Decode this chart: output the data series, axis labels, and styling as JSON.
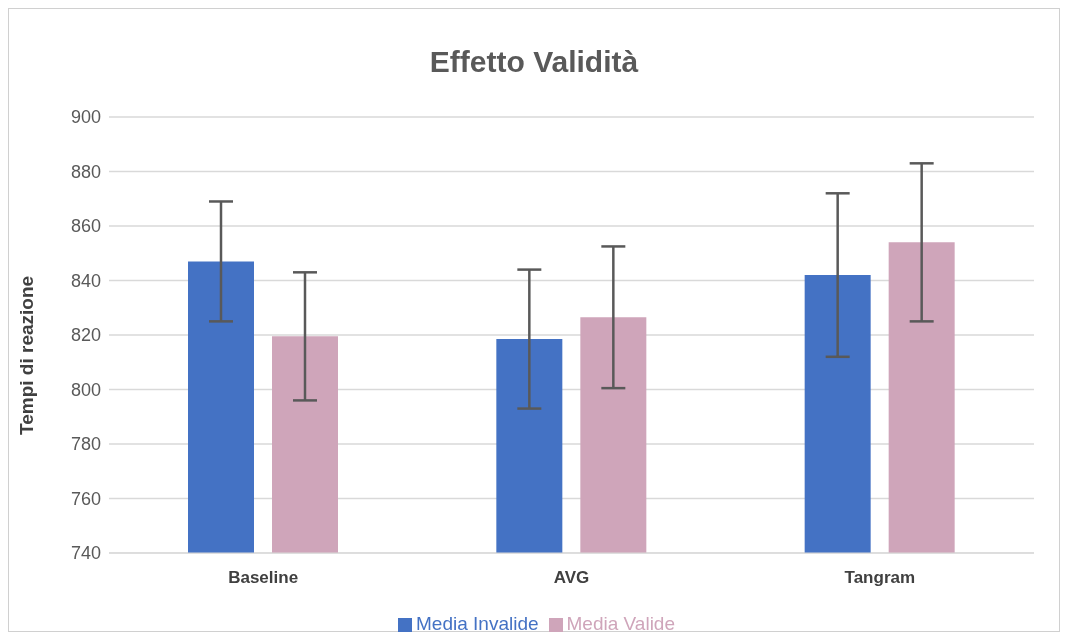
{
  "chart_data": {
    "type": "bar",
    "title": "Effetto Validità",
    "ylabel": "Tempi di reazione",
    "categories": [
      "Baseline",
      "AVG",
      "Tangram"
    ],
    "series": [
      {
        "name": "Media Invalide",
        "color": "#4472c4",
        "values": [
          847,
          818.5,
          842
        ],
        "errors": [
          22,
          25.5,
          30
        ]
      },
      {
        "name": "Media Valide",
        "color": "#cfa5ba",
        "values": [
          819.5,
          826.5,
          854
        ],
        "errors": [
          23.5,
          26,
          29
        ]
      }
    ],
    "ylim": [
      740,
      900
    ],
    "yticks": [
      740,
      760,
      780,
      800,
      820,
      840,
      860,
      880,
      900
    ],
    "grid": "y",
    "legend": "bottom"
  }
}
